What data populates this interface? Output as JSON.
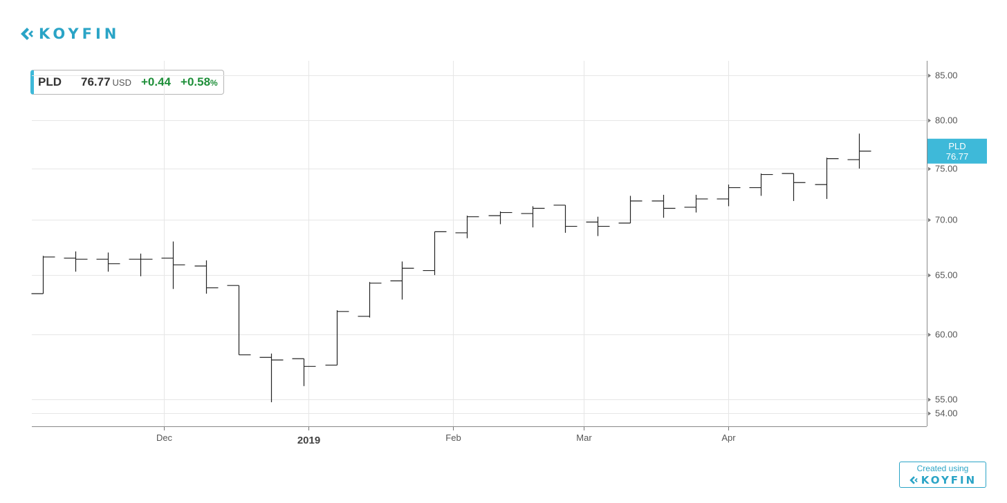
{
  "brand": {
    "name": "KOYFIN",
    "color": "#2aa4c6",
    "icon": "koyfin-chevron-icon"
  },
  "quote": {
    "ticker": "PLD",
    "price": "76.77",
    "currency": "USD",
    "change": "+0.44",
    "change_pct": "+0.58",
    "pct_sign": "%",
    "up_color": "#1f8f3a",
    "accent_color": "#3eb9d9"
  },
  "credit": {
    "text": "Created using",
    "brand": "KOYFIN"
  },
  "chart_data": {
    "type": "ohlc",
    "title": "",
    "xlabel": "",
    "ylabel": "",
    "y_scale": "log",
    "ylim": [
      53,
      86.5
    ],
    "yticks": [
      85,
      80,
      75,
      70,
      65,
      60,
      55,
      54
    ],
    "ytick_labels": [
      "85.00",
      "80.00",
      "75.00",
      "70.00",
      "65.00",
      "60.00",
      "55.00",
      "54.00"
    ],
    "xticks": [
      {
        "date": "2018-12-01",
        "label": "Dec",
        "bold": false
      },
      {
        "date": "2019-01-01",
        "label": "2019",
        "bold": true
      },
      {
        "date": "2019-02-01",
        "label": "Feb",
        "bold": false
      },
      {
        "date": "2019-03-01",
        "label": "Mar",
        "bold": false
      },
      {
        "date": "2019-04-01",
        "label": "Apr",
        "bold": false
      }
    ],
    "grid": true,
    "last_price_label": {
      "series": "PLD",
      "value": "76.77",
      "color": "#3eb9d9"
    },
    "bars": [
      {
        "date": "2018-11-05",
        "open": 63.4,
        "high": 66.7,
        "low": 63.4,
        "close": 66.6
      },
      {
        "date": "2018-11-12",
        "open": 66.5,
        "high": 67.1,
        "low": 65.3,
        "close": 66.4
      },
      {
        "date": "2018-11-19",
        "open": 66.4,
        "high": 67.0,
        "low": 65.3,
        "close": 66.0
      },
      {
        "date": "2018-11-26",
        "open": 66.4,
        "high": 66.9,
        "low": 64.9,
        "close": 66.4
      },
      {
        "date": "2018-12-03",
        "open": 66.5,
        "high": 68.0,
        "low": 63.8,
        "close": 65.9
      },
      {
        "date": "2018-12-10",
        "open": 65.8,
        "high": 66.3,
        "low": 63.4,
        "close": 63.9
      },
      {
        "date": "2018-12-17",
        "open": 64.1,
        "high": 64.1,
        "low": 58.4,
        "close": 58.4
      },
      {
        "date": "2018-12-24",
        "open": 58.2,
        "high": 58.5,
        "low": 54.8,
        "close": 58.0
      },
      {
        "date": "2018-12-31",
        "open": 58.1,
        "high": 58.1,
        "low": 56.0,
        "close": 57.5
      },
      {
        "date": "2019-01-07",
        "open": 57.6,
        "high": 62.0,
        "low": 57.6,
        "close": 61.9
      },
      {
        "date": "2019-01-14",
        "open": 61.5,
        "high": 64.4,
        "low": 61.4,
        "close": 64.3
      },
      {
        "date": "2019-01-21",
        "open": 64.5,
        "high": 66.2,
        "low": 62.9,
        "close": 65.6
      },
      {
        "date": "2019-01-28",
        "open": 65.4,
        "high": 68.9,
        "low": 65.0,
        "close": 68.9
      },
      {
        "date": "2019-02-04",
        "open": 68.8,
        "high": 70.4,
        "low": 68.3,
        "close": 70.3
      },
      {
        "date": "2019-02-11",
        "open": 70.4,
        "high": 70.8,
        "low": 69.6,
        "close": 70.7
      },
      {
        "date": "2019-02-18",
        "open": 70.6,
        "high": 71.3,
        "low": 69.3,
        "close": 71.1
      },
      {
        "date": "2019-02-25",
        "open": 71.4,
        "high": 71.4,
        "low": 68.8,
        "close": 69.4
      },
      {
        "date": "2019-03-04",
        "open": 69.8,
        "high": 70.3,
        "low": 68.5,
        "close": 69.4
      },
      {
        "date": "2019-03-11",
        "open": 69.7,
        "high": 72.3,
        "low": 69.7,
        "close": 71.8
      },
      {
        "date": "2019-03-18",
        "open": 71.8,
        "high": 72.4,
        "low": 70.2,
        "close": 71.1
      },
      {
        "date": "2019-03-25",
        "open": 71.2,
        "high": 72.4,
        "low": 70.7,
        "close": 72.0
      },
      {
        "date": "2019-04-01",
        "open": 72.0,
        "high": 73.4,
        "low": 71.3,
        "close": 73.1
      },
      {
        "date": "2019-04-08",
        "open": 73.1,
        "high": 74.5,
        "low": 72.3,
        "close": 74.4
      },
      {
        "date": "2019-04-15",
        "open": 74.5,
        "high": 74.5,
        "low": 71.8,
        "close": 73.6
      },
      {
        "date": "2019-04-22",
        "open": 73.4,
        "high": 76.1,
        "low": 72.0,
        "close": 76.0
      },
      {
        "date": "2019-04-29",
        "open": 75.9,
        "high": 78.6,
        "low": 75.0,
        "close": 76.77
      }
    ]
  }
}
